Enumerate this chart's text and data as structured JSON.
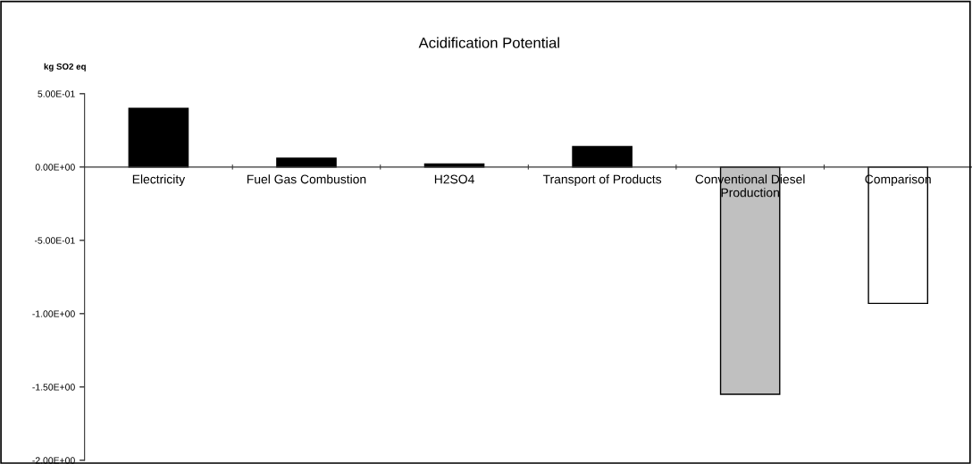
{
  "chart_data": {
    "type": "bar",
    "title": "Acidification Potential",
    "ylabel": "kg SO2 eq",
    "categories": [
      "Electricity",
      "Fuel Gas Combustion",
      "H2SO4",
      "Transport of Products",
      "Conventional Diesel Production",
      "Comparison"
    ],
    "values": [
      0.4,
      0.06,
      0.02,
      0.14,
      -1.55,
      -0.93
    ],
    "colors": [
      "#000000",
      "#000000",
      "#000000",
      "#000000",
      "#c0c0c0",
      "#ffffff"
    ],
    "ylim": [
      -2,
      0.5
    ],
    "yticks": [
      {
        "value": -2,
        "label": "-2.00E+00"
      },
      {
        "value": -1.5,
        "label": "-1.50E+00"
      },
      {
        "value": -1,
        "label": "-1.00E+00"
      },
      {
        "value": -0.5,
        "label": "-5.00E-01"
      },
      {
        "value": 0,
        "label": "0.00E+00"
      },
      {
        "value": 0.5,
        "label": "5.00E-01"
      }
    ],
    "grid": false,
    "legend": false
  }
}
